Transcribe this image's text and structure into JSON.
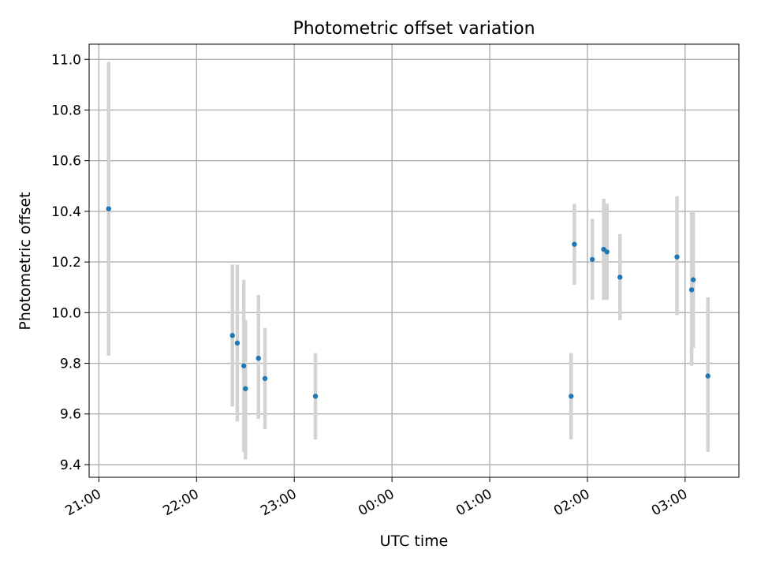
{
  "colors": {
    "background": "#ffffff",
    "grid": "#b0b0b0",
    "errorbar": "#d3d3d3",
    "marker": "#1f77b4",
    "axes": "#000000"
  },
  "chart_data": {
    "type": "scatter",
    "title": "Photometric offset variation",
    "xlabel": "UTC time",
    "ylabel": "Photometric offset",
    "x_axis_kind": "time (HH:MM)",
    "xlim": [
      "20:54",
      "03:33"
    ],
    "ylim": [
      9.35,
      11.06
    ],
    "grid": true,
    "legend": "none",
    "x_ticks": [
      "21:00",
      "22:00",
      "23:00",
      "00:00",
      "01:00",
      "02:00",
      "03:00"
    ],
    "y_ticks": [
      "9.4",
      "9.6",
      "9.8",
      "10.0",
      "10.2",
      "10.4",
      "10.6",
      "10.8",
      "11.0"
    ],
    "series": [
      {
        "marker": "dot",
        "errorbar": "vertical",
        "points": [
          {
            "x": "21:06",
            "y": 10.41,
            "ylow": 9.83,
            "yhigh": 10.99
          },
          {
            "x": "22:22",
            "y": 9.91,
            "ylow": 9.63,
            "yhigh": 10.19
          },
          {
            "x": "22:25",
            "y": 9.88,
            "ylow": 9.57,
            "yhigh": 10.19
          },
          {
            "x": "22:29",
            "y": 9.79,
            "ylow": 9.45,
            "yhigh": 10.13
          },
          {
            "x": "22:30",
            "y": 9.7,
            "ylow": 9.42,
            "yhigh": 9.97
          },
          {
            "x": "22:38",
            "y": 9.82,
            "ylow": 9.58,
            "yhigh": 10.07
          },
          {
            "x": "22:42",
            "y": 9.74,
            "ylow": 9.54,
            "yhigh": 9.94
          },
          {
            "x": "23:13",
            "y": 9.67,
            "ylow": 9.5,
            "yhigh": 9.84
          },
          {
            "x": "01:50",
            "y": 9.67,
            "ylow": 9.5,
            "yhigh": 9.84
          },
          {
            "x": "01:52",
            "y": 10.27,
            "ylow": 10.11,
            "yhigh": 10.43
          },
          {
            "x": "02:03",
            "y": 10.21,
            "ylow": 10.05,
            "yhigh": 10.37
          },
          {
            "x": "02:10",
            "y": 10.25,
            "ylow": 10.05,
            "yhigh": 10.45
          },
          {
            "x": "02:12",
            "y": 10.24,
            "ylow": 10.05,
            "yhigh": 10.43
          },
          {
            "x": "02:20",
            "y": 10.14,
            "ylow": 9.97,
            "yhigh": 10.31
          },
          {
            "x": "02:55",
            "y": 10.22,
            "ylow": 9.99,
            "yhigh": 10.46
          },
          {
            "x": "03:04",
            "y": 10.09,
            "ylow": 9.79,
            "yhigh": 10.4
          },
          {
            "x": "03:05",
            "y": 10.13,
            "ylow": 9.86,
            "yhigh": 10.4
          },
          {
            "x": "03:14",
            "y": 9.75,
            "ylow": 9.45,
            "yhigh": 10.06
          }
        ]
      }
    ]
  }
}
